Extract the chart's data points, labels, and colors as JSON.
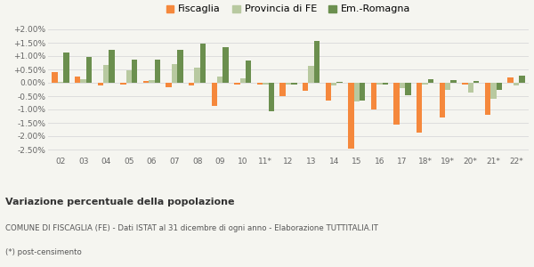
{
  "years": [
    "02",
    "03",
    "04",
    "05",
    "06",
    "07",
    "08",
    "09",
    "10",
    "11*",
    "12",
    "13",
    "14",
    "15",
    "16",
    "17",
    "18*",
    "19*",
    "20*",
    "21*",
    "22*"
  ],
  "fiscaglia": [
    0.4,
    0.22,
    -0.1,
    -0.05,
    0.08,
    -0.15,
    -0.1,
    -0.85,
    -0.05,
    -0.05,
    -0.5,
    -0.3,
    -0.65,
    -2.45,
    -1.0,
    -1.55,
    -1.85,
    -1.3,
    -0.05,
    -1.2,
    0.2
  ],
  "provincia_fe": [
    0.02,
    0.15,
    0.68,
    0.48,
    0.1,
    0.7,
    0.58,
    0.25,
    0.18,
    -0.05,
    -0.05,
    0.65,
    -0.1,
    -0.7,
    -0.07,
    -0.2,
    -0.07,
    -0.25,
    -0.35,
    -0.6,
    -0.1
  ],
  "em_romagna": [
    1.12,
    0.98,
    1.25,
    0.88,
    0.88,
    1.25,
    1.48,
    1.32,
    0.82,
    -1.08,
    -0.05,
    1.58,
    0.05,
    -0.65,
    -0.08,
    -0.45,
    0.12,
    0.1,
    0.08,
    -0.28,
    0.28
  ],
  "color_fiscaglia": "#f5883c",
  "color_provincia": "#b8c9a0",
  "color_em": "#6b8f4e",
  "background_color": "#f5f5f0",
  "grid_color": "#dddddd",
  "ylim": [
    -2.7,
    2.3
  ],
  "yticks": [
    -2.5,
    -2.0,
    -1.5,
    -1.0,
    -0.5,
    0.0,
    0.5,
    1.0,
    1.5,
    2.0
  ],
  "title": "Variazione percentuale della popolazione",
  "subtitle": "COMUNE DI FISCAGLIA (FE) - Dati ISTAT al 31 dicembre di ogni anno - Elaborazione TUTTITALIA.IT",
  "footnote": "(*) post-censimento",
  "legend_labels": [
    "Fiscaglia",
    "Provincia di FE",
    "Em.-Romagna"
  ]
}
